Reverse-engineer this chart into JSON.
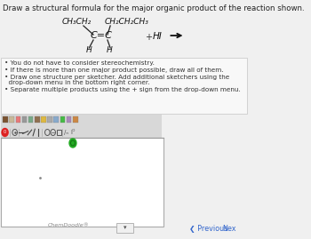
{
  "title": "Draw a structural formula for the major organic product of the reaction shown.",
  "title_fontsize": 6.2,
  "bg_color": "#f0f0f0",
  "white": "#ffffff",
  "bullet_points": [
    "You do not have to consider stereochemistry.",
    "If there is more than one major product possible, draw all of them.",
    "Draw one structure per sketcher. Add additional sketchers using the drop-down menu in the bottom right corner.",
    "Separate multiple products using the + sign from the drop-down menu."
  ],
  "chemdoodle_label": "ChemDoodle®",
  "previous_label": "❮ Previous",
  "next_label": "Nex",
  "top_left": "CH₃CH₂",
  "top_right": "CH₂CH₂CH₃",
  "h_left": "H",
  "h_right": "H",
  "double_bond": "C=C",
  "plus": "+",
  "reagent": "HI"
}
